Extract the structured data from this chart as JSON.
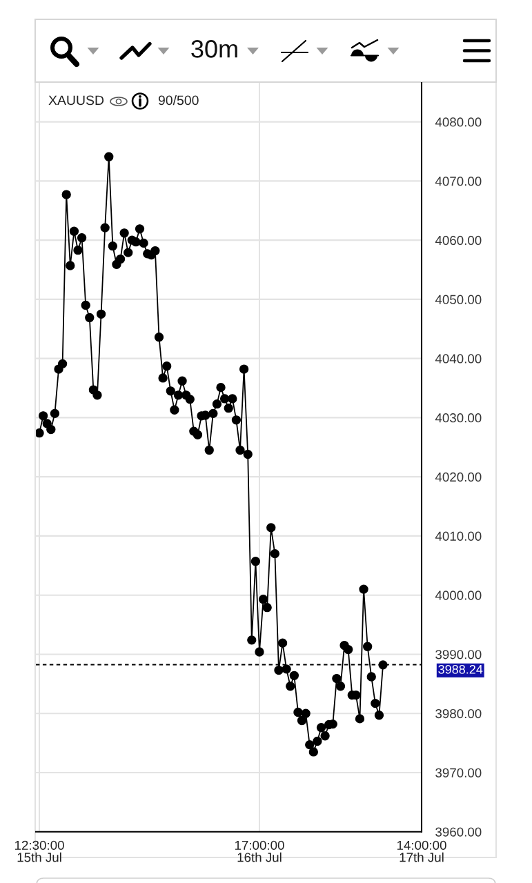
{
  "chart_data": {
    "type": "line",
    "title": "XAUUSD",
    "subtitle": "90/500",
    "annotations": [
      "30m"
    ],
    "categories": [
      "12:30:00\n15th Jul",
      null,
      null,
      null,
      null,
      null,
      null,
      null,
      null,
      null,
      null,
      null,
      null,
      null,
      null,
      null,
      null,
      null,
      null,
      null,
      null,
      null,
      null,
      null,
      null,
      null,
      null,
      null,
      null,
      null,
      null,
      null,
      null,
      null,
      null,
      null,
      null,
      null,
      null,
      null,
      null,
      null,
      null,
      null,
      null,
      null,
      null,
      null,
      null,
      null,
      null,
      null,
      null,
      null,
      null,
      null,
      null,
      "17:00:00\n16th Jul",
      null,
      null,
      null,
      null,
      null,
      null,
      null,
      null,
      null,
      null,
      null,
      null,
      null,
      null,
      null,
      null,
      null,
      null,
      null,
      null,
      null,
      null,
      null,
      null,
      null,
      null,
      null,
      null,
      null,
      null,
      null,
      null,
      null,
      null,
      null,
      null,
      null,
      null,
      null,
      null,
      null,
      "14:00:00\n17th Jul"
    ],
    "series": [
      {
        "color": "#000000",
        "values": [
          4027.4,
          4030.3,
          4029.0,
          4028.0,
          4030.7,
          4038.2,
          4039.1,
          4067.7,
          4055.7,
          4061.5,
          4058.3,
          4060.4,
          4049.0,
          4046.9,
          4034.7,
          4033.8,
          4047.5,
          4062.1,
          4074.1,
          4059.0,
          4055.9,
          4056.8,
          4061.2,
          4057.9,
          4060.0,
          4059.7,
          4061.9,
          4059.5,
          4057.7,
          4057.5,
          4058.2,
          4043.6,
          4036.7,
          4038.7,
          4034.5,
          4031.3,
          4033.8,
          4036.2,
          4033.8,
          4033.1,
          4027.7,
          4027.1,
          4030.3,
          4030.4,
          4024.5,
          4030.7,
          4032.3,
          4035.1,
          4033.2,
          4031.6,
          4033.2,
          4029.6,
          4024.5,
          4038.2,
          4023.8,
          3992.4,
          4005.7,
          3990.4,
          3999.3,
          3997.9,
          4011.4,
          4007.0,
          3987.3,
          3991.9,
          3987.5,
          3984.6,
          3986.4,
          3980.2,
          3978.8,
          3980.0,
          3974.7,
          3973.5,
          3975.3,
          3977.6,
          3976.2,
          3978.1,
          3978.2,
          3985.9,
          3984.6,
          3991.5,
          3990.8,
          3983.1,
          3983.1,
          3979.1,
          4001.0,
          3991.3,
          3986.2,
          3981.7,
          3979.7,
          3988.2,
          null,
          null,
          null,
          null,
          null,
          null,
          null,
          null,
          null,
          null
        ]
      }
    ],
    "ylim": [
      3960,
      4086.6
    ],
    "yticks": [
      {
        "value": 3960,
        "label": "3960.00"
      },
      {
        "value": 3970,
        "label": "3970.00"
      },
      {
        "value": 3980,
        "label": "3980.00"
      },
      {
        "value": 3990,
        "label": "3990.00"
      },
      {
        "value": 4000,
        "label": "4000.00"
      },
      {
        "value": 4010,
        "label": "4010.00"
      },
      {
        "value": 4020,
        "label": "4020.00"
      },
      {
        "value": 4030,
        "label": "4030.00"
      },
      {
        "value": 4040,
        "label": "4040.00"
      },
      {
        "value": 4050,
        "label": "4050.00"
      },
      {
        "value": 4060,
        "label": "4060.00"
      },
      {
        "value": 4070,
        "label": "4070.00"
      },
      {
        "value": 4080,
        "label": "4080.00"
      }
    ],
    "grid": true,
    "marker": "circle",
    "line_style": "solid",
    "ref_lines": [
      {
        "axis": "y",
        "value": 3988.24,
        "label": "3988.24",
        "color": "#000000",
        "line_style": "dashed"
      }
    ]
  }
}
